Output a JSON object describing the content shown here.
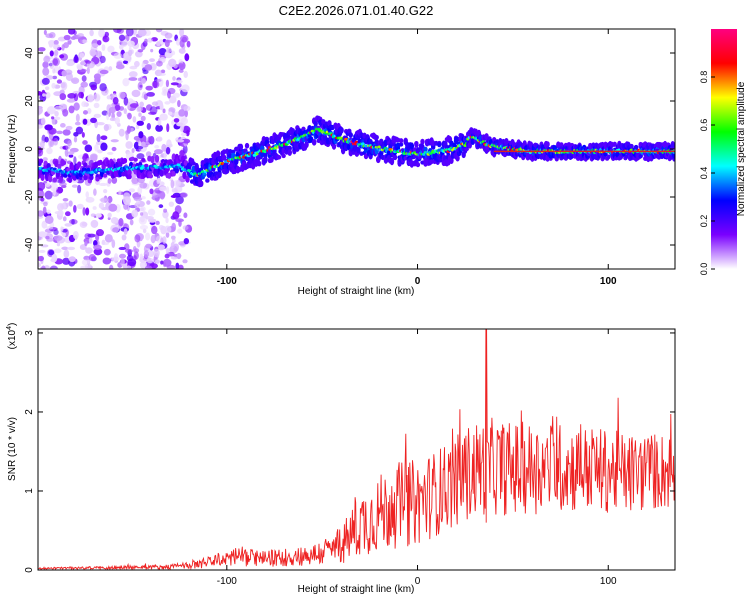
{
  "title": "C2E2.2026.071.01.40.G22",
  "chart_data": [
    {
      "type": "heatmap",
      "title": "C2E2.2026.071.01.40.G22",
      "xlabel": "Height of straight line (km)",
      "ylabel": "Frequency (Hz)",
      "xlim": [
        -199,
        135
      ],
      "ylim": [
        -50,
        50
      ],
      "xticks": [
        -100,
        0,
        100
      ],
      "xtick_labels": [
        "-100",
        "0",
        "100"
      ],
      "yticks": [
        -40,
        -20,
        0,
        20,
        40
      ],
      "ytick_labels": [
        "-40",
        "-20",
        "0",
        "20",
        "40"
      ],
      "colorbar": {
        "label": "Normalized spectral amplitude",
        "range": [
          0,
          1
        ],
        "ticks": [
          0.0,
          0.2,
          0.4,
          0.6,
          0.8
        ],
        "tick_labels": [
          "0.0",
          "0.2",
          "0.4",
          "0.6",
          "0.8"
        ],
        "colors": [
          "#ffffff",
          "#7a00ff",
          "#0000ff",
          "#00ffff",
          "#00ff00",
          "#ffff00",
          "#ff0000",
          "#ff0080"
        ]
      },
      "ridge": {
        "x": [
          -199,
          -180,
          -150,
          -125,
          -115,
          -100,
          -85,
          -70,
          -60,
          -52,
          -45,
          -40,
          -35,
          -25,
          -10,
          0,
          15,
          25,
          28,
          40,
          60,
          80,
          100,
          120,
          135
        ],
        "frequency": [
          -8,
          -10,
          -8,
          -7,
          -11,
          -5,
          -2,
          2,
          5,
          8,
          6,
          4,
          3,
          1,
          -1,
          -2,
          -1,
          2,
          5,
          1,
          -1,
          -1,
          -1,
          -1,
          -1
        ]
      },
      "noise_region_x": [
        -199,
        -120
      ]
    },
    {
      "type": "line",
      "xlabel": "Height of straight line (km)",
      "ylabel": "SNR (10 * v/v)",
      "ylabel_unit": "(x10",
      "ylabel_unit_exp": "4",
      "ylabel_unit_close": ")",
      "xlim": [
        -199,
        135
      ],
      "ylim": [
        0,
        3.05
      ],
      "xticks": [
        -100,
        0,
        100
      ],
      "xtick_labels": [
        "-100",
        "0",
        "100"
      ],
      "yticks": [
        0,
        1,
        2,
        3
      ],
      "ytick_labels": [
        "0",
        "1",
        "2",
        "3"
      ],
      "color": "#ee2222",
      "series": [
        {
          "name": "SNR",
          "x": [
            -199,
            -160,
            -130,
            -115,
            -105,
            -95,
            -80,
            -70,
            -55,
            -45,
            -38,
            -30,
            -20,
            -10,
            0,
            10,
            20,
            28,
            36,
            50,
            70,
            90,
            110,
            125,
            135
          ],
          "base": [
            0.02,
            0.03,
            0.04,
            0.07,
            0.12,
            0.18,
            0.14,
            0.16,
            0.19,
            0.26,
            0.36,
            0.58,
            0.72,
            0.82,
            0.86,
            0.98,
            1.12,
            1.25,
            1.32,
            1.28,
            1.3,
            1.28,
            1.22,
            1.25,
            1.25
          ],
          "amp": [
            0.01,
            0.02,
            0.03,
            0.05,
            0.09,
            0.13,
            0.1,
            0.12,
            0.14,
            0.2,
            0.28,
            0.42,
            0.5,
            0.55,
            0.55,
            0.55,
            0.58,
            0.62,
            0.62,
            0.6,
            0.58,
            0.55,
            0.52,
            0.5,
            0.5
          ],
          "peak": {
            "x": 36,
            "value": 3.05
          }
        }
      ]
    }
  ]
}
